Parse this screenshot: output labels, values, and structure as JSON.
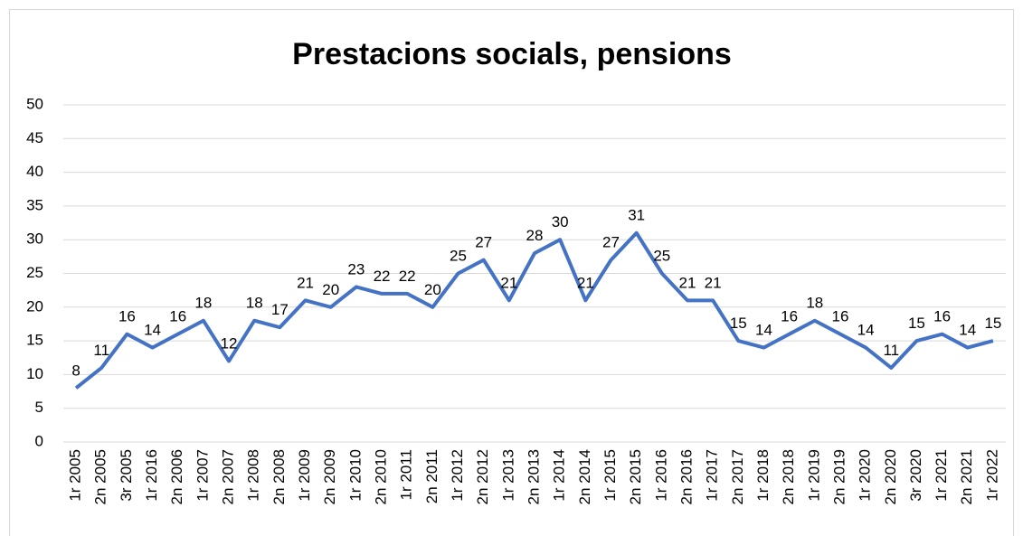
{
  "chart_data": {
    "type": "line",
    "title": "Prestacions socials, pensions",
    "categories": [
      "1r 2005",
      "2n 2005",
      "3r 2005",
      "1r 2016",
      "2n 2006",
      "1r 2007",
      "2n 2007",
      "1r 2008",
      "2n 2008",
      "1r 2009",
      "2n 2009",
      "1r 2010",
      "2n 2010",
      "1r 2011",
      "2n 2011",
      "1r 2012",
      "2n 2012",
      "1r 2013",
      "2n 2013",
      "1r 2014",
      "2n 2014",
      "1r 2015",
      "2n 2015",
      "1r 2016",
      "2n 2016",
      "1r 2017",
      "2n 2017",
      "1r 2018",
      "2n 2018",
      "1r 2019",
      "2n 2019",
      "1r 2020",
      "2n 2020",
      "3r 2020",
      "1r 2021",
      "2n 2021",
      "1r 2022"
    ],
    "series": [
      {
        "name": "Prestacions socials, pensions",
        "color": "#4472c4",
        "values": [
          8,
          11,
          16,
          14,
          16,
          18,
          12,
          18,
          17,
          21,
          20,
          23,
          22,
          22,
          20,
          25,
          27,
          21,
          28,
          30,
          21,
          27,
          31,
          25,
          21,
          21,
          15,
          14,
          16,
          18,
          16,
          14,
          11,
          15,
          16,
          14,
          15
        ]
      }
    ],
    "ylim": [
      0,
      50
    ],
    "yticks": [
      0,
      5,
      10,
      15,
      20,
      25,
      30,
      35,
      40,
      45,
      50
    ],
    "grid": true
  }
}
